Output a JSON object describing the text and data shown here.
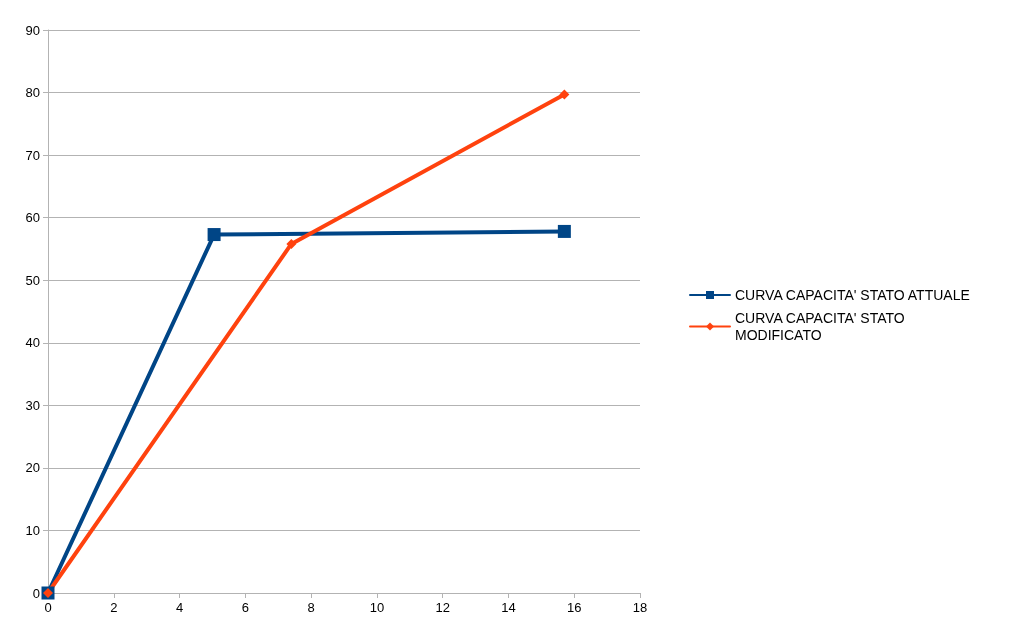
{
  "chart_data": {
    "type": "line",
    "xlim": [
      0,
      18
    ],
    "xticks": [
      0,
      2,
      4,
      6,
      8,
      10,
      12,
      14,
      16,
      18
    ],
    "ylim": [
      0,
      90
    ],
    "yticks": [
      0,
      10,
      20,
      30,
      40,
      50,
      60,
      70,
      80,
      90
    ],
    "grid": "y",
    "legend": "right",
    "line_style": "solid",
    "series": [
      {
        "name": "CURVA CAPACITA' STATO ATTUALE",
        "color": "#004586",
        "marker": "square",
        "x": [
          0,
          5.05,
          15.7
        ],
        "values": [
          0,
          57.3,
          57.8
        ]
      },
      {
        "name": "CURVA CAPACITA' STATO MODIFICATO",
        "color": "#ff420e",
        "marker": "diamond",
        "x": [
          0,
          7.4,
          15.7
        ],
        "values": [
          0,
          55.8,
          79.7
        ]
      }
    ]
  }
}
